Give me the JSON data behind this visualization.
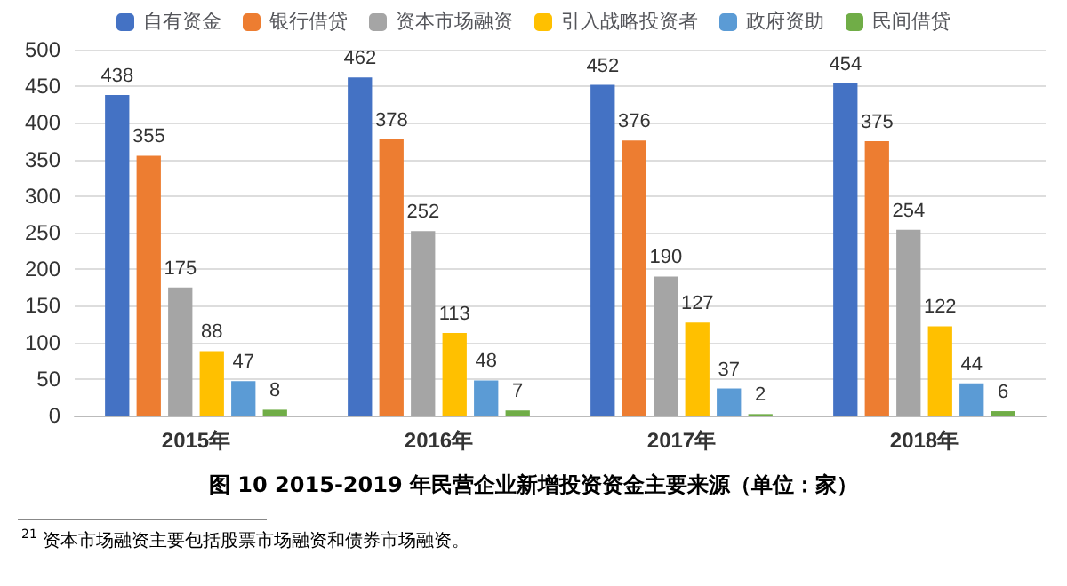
{
  "chart_data": {
    "type": "bar",
    "title": "图 10 2015-2019 年民营企业新增投资资金主要来源（单位：家）",
    "categories": [
      "2015年",
      "2016年",
      "2017年",
      "2018年"
    ],
    "series": [
      {
        "name": "自有资金",
        "color": "#4472c4",
        "values": [
          438,
          462,
          452,
          454
        ]
      },
      {
        "name": "银行借贷",
        "color": "#ed7d31",
        "values": [
          355,
          378,
          376,
          375
        ]
      },
      {
        "name": "资本市场融资",
        "color": "#a5a5a5",
        "values": [
          175,
          252,
          190,
          254
        ]
      },
      {
        "name": "引入战略投资者",
        "color": "#ffc000",
        "values": [
          88,
          113,
          127,
          122
        ]
      },
      {
        "name": "政府资助",
        "color": "#5b9bd5",
        "values": [
          47,
          48,
          37,
          44
        ]
      },
      {
        "name": "民间借贷",
        "color": "#70ad47",
        "values": [
          8,
          7,
          2,
          6
        ]
      }
    ],
    "ylim": [
      0,
      500
    ],
    "yticks": [
      0,
      50,
      100,
      150,
      200,
      250,
      300,
      350,
      400,
      450,
      500
    ],
    "grid": "y",
    "legend": "top",
    "data_labels": true,
    "annotations": [
      "$^{21}$ 资本市场融资主要包括股票市场融资和债券市场融资。"
    ]
  }
}
